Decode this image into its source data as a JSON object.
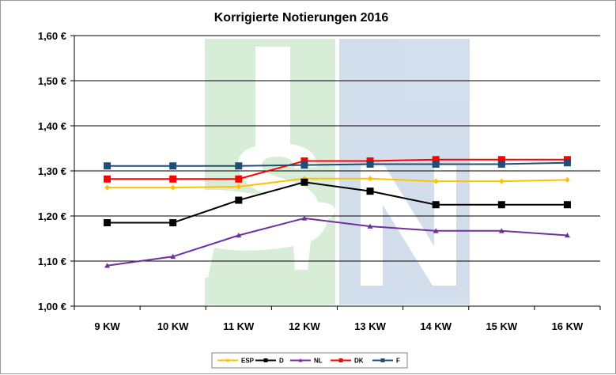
{
  "chart_data": {
    "type": "line",
    "title": "Korrigierte Notierungen 2016",
    "xlabel": "",
    "ylabel": "",
    "categories": [
      "9 KW",
      "10 KW",
      "11 KW",
      "12 KW",
      "13 KW",
      "14 KW",
      "15 KW",
      "16 KW"
    ],
    "y_tick_labels": [
      "1,00 €",
      "1,10 €",
      "1,20 €",
      "1,30 €",
      "1,40 €",
      "1,50 €",
      "1,60 €"
    ],
    "ylim": [
      1.0,
      1.6
    ],
    "y_step": 0.1,
    "grid": "horizontal",
    "legend_position": "bottom",
    "series": [
      {
        "name": "ESP",
        "color": "#FFC000",
        "marker": "diamond",
        "values": [
          1.263,
          1.263,
          1.265,
          1.283,
          1.283,
          1.277,
          1.277,
          1.28
        ]
      },
      {
        "name": "D",
        "color": "#000000",
        "marker": "square",
        "values": [
          1.185,
          1.185,
          1.235,
          1.275,
          1.255,
          1.225,
          1.225,
          1.225
        ]
      },
      {
        "name": "NL",
        "color": "#7030A0",
        "marker": "triangle",
        "values": [
          1.09,
          1.11,
          1.157,
          1.195,
          1.177,
          1.167,
          1.167,
          1.157
        ]
      },
      {
        "name": "DK",
        "color": "#FF0000",
        "marker": "square",
        "values": [
          1.282,
          1.282,
          1.282,
          1.322,
          1.322,
          1.325,
          1.325,
          1.325
        ]
      },
      {
        "name": "F",
        "color": "#1F4E79",
        "marker": "square",
        "values": [
          1.311,
          1.311,
          1.311,
          1.313,
          1.315,
          1.315,
          1.315,
          1.318
        ]
      }
    ]
  }
}
